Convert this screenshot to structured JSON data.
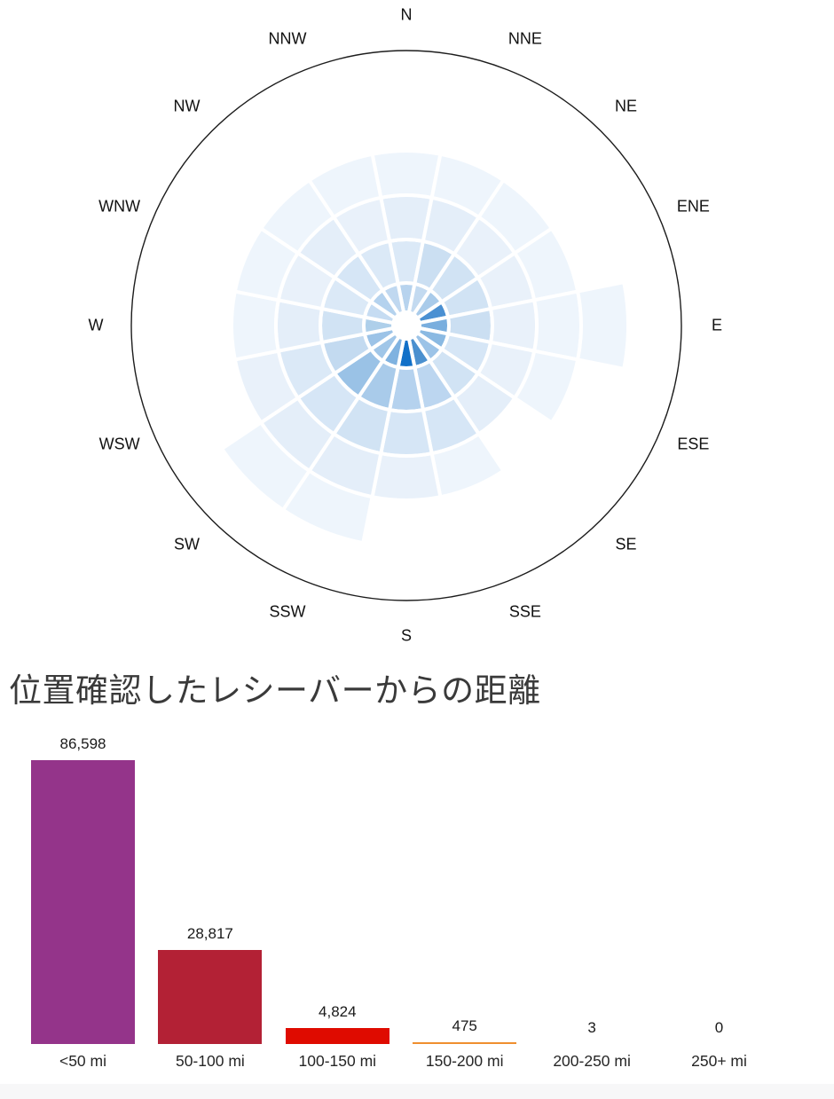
{
  "page": {
    "background": "#ffffff",
    "footer_band_color": "#f7f7f8",
    "title_color": "#3a3a3a"
  },
  "chart_data": [
    {
      "type": "heatmap",
      "layout": "polar-wind-rose",
      "title": "",
      "directions": [
        "N",
        "NNE",
        "NE",
        "ENE",
        "E",
        "ESE",
        "SE",
        "SSE",
        "S",
        "SSW",
        "SW",
        "WSW",
        "W",
        "WNW",
        "NW",
        "NNW"
      ],
      "rings": 5,
      "ring_note": "rings ordered inner to outer; null = no cell drawn; darker blue = higher density",
      "outline_color": "#1c1c1c",
      "cell_gap_color": "#ffffff",
      "cell_colors": {
        "N": [
          "#b7d3ee",
          "#dbe9f7",
          "#e4eef9",
          "#eef5fc",
          null
        ],
        "NNE": [
          "#c3daf0",
          "#cbdff2",
          "#e4eef9",
          "#eef5fc",
          null
        ],
        "NE": [
          "#a9cbea",
          "#d1e3f4",
          "#e9f1fa",
          "#eef5fc",
          null
        ],
        "ENE": [
          "#4a90d2",
          "#d1e3f4",
          "#e9f1fa",
          "#eef5fc",
          null
        ],
        "E": [
          "#79aede",
          "#cbdff2",
          "#e9f1fa",
          "#eef5fc",
          "#eef5fc"
        ],
        "ESE": [
          "#8ab9e2",
          "#d6e6f6",
          "#e9f1fa",
          "#eef5fc",
          null
        ],
        "SE": [
          "#9cc3e7",
          "#d1e3f4",
          "#e4eef9",
          null,
          null
        ],
        "SSE": [
          "#4b90cf",
          "#bcd6f0",
          "#d6e6f6",
          "#eef5fc",
          null
        ],
        "S": [
          "#1170c8",
          "#b5d2ee",
          "#d6e6f6",
          "#e9f1fa",
          null
        ],
        "SSW": [
          "#7fb2e0",
          "#a9cbea",
          "#d1e3f4",
          "#e4eef9",
          "#eef5fc"
        ],
        "SW": [
          "#a0c6e8",
          "#9ac2e6",
          "#d6e6f6",
          "#e4eef9",
          "#eef5fc"
        ],
        "WSW": [
          "#9cc3e7",
          "#c3daf0",
          "#dbe9f7",
          "#e9f1fa",
          null
        ],
        "W": [
          "#aecfea",
          "#d1e3f4",
          "#e4eef9",
          "#eef5fc",
          null
        ],
        "WNW": [
          "#c6dcf2",
          "#dbe9f7",
          "#e9f1fa",
          "#eef5fc",
          null
        ],
        "NW": [
          "#b4d2ee",
          "#d6e6f6",
          "#e4eef9",
          "#eef5fc",
          null
        ],
        "NNW": [
          "#c0d8f0",
          "#dbe9f7",
          "#e9f1fa",
          "#eef5fc",
          null
        ]
      }
    },
    {
      "type": "bar",
      "title": "位置確認したレシーバーからの距離",
      "categories": [
        "<50 mi",
        "50-100 mi",
        "100-150 mi",
        "150-200 mi",
        "200-250 mi",
        "250+ mi"
      ],
      "values": [
        86598,
        28817,
        4824,
        475,
        3,
        0
      ],
      "value_labels": [
        "86,598",
        "28,817",
        "4,824",
        "475",
        "3",
        "0"
      ],
      "bar_colors": [
        "#94348a",
        "#b32135",
        "#df0b00",
        "#ef8f2f",
        null,
        null
      ],
      "xlabel": "",
      "ylabel": "",
      "ylim": [
        0,
        90000
      ],
      "grid": false,
      "legend": "none"
    }
  ]
}
